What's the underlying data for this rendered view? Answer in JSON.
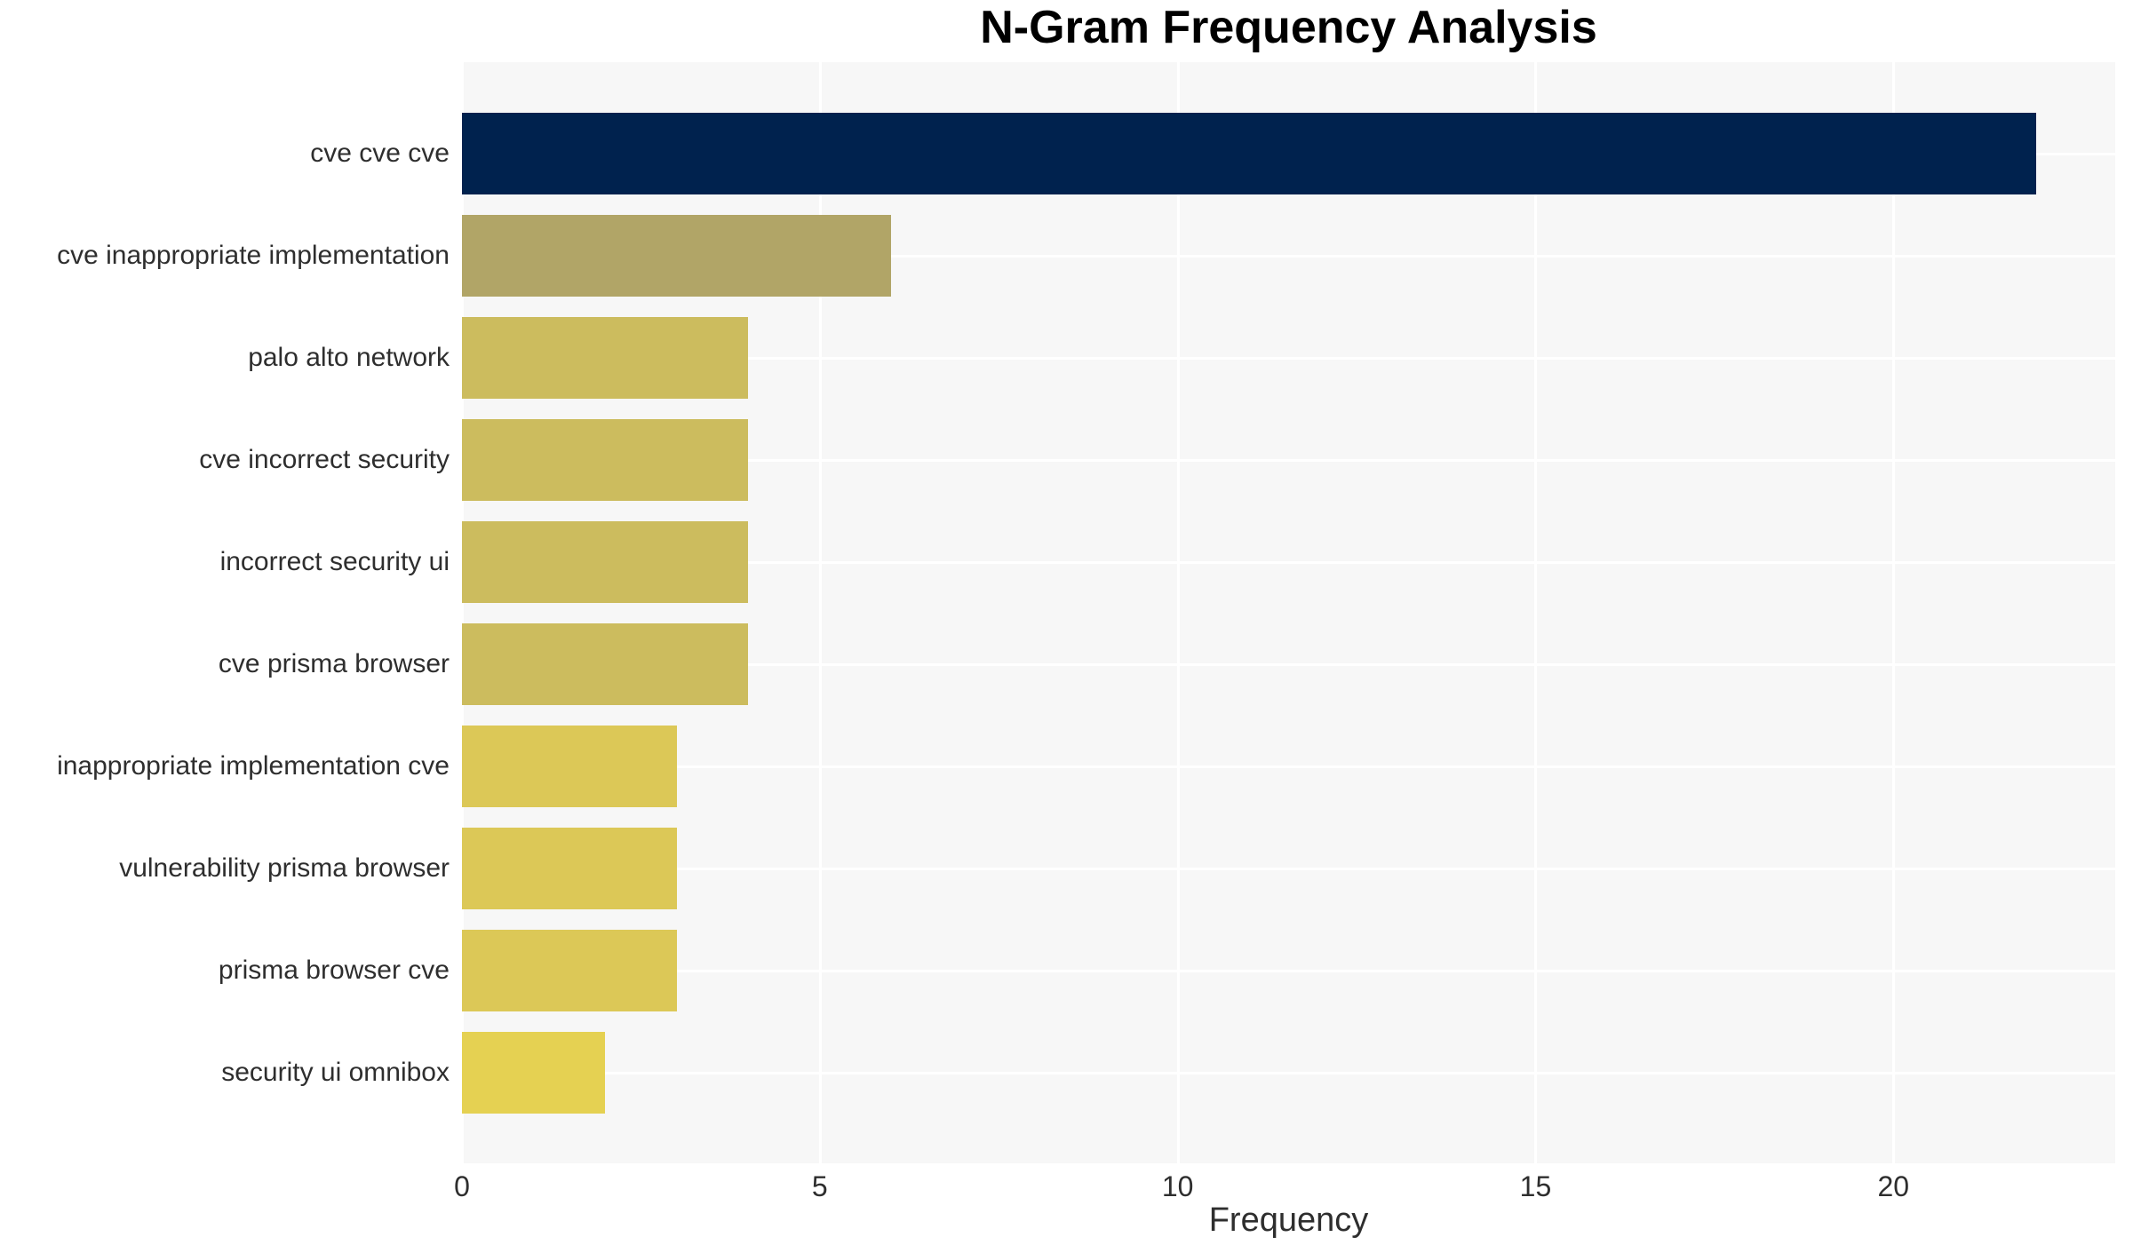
{
  "title": "N-Gram Frequency Analysis",
  "chart_data": {
    "type": "bar",
    "orientation": "horizontal",
    "title": "N-Gram Frequency Analysis",
    "xlabel": "Frequency",
    "ylabel": "",
    "categories": [
      "cve cve cve",
      "cve inappropriate implementation",
      "palo alto network",
      "cve incorrect security",
      "incorrect security ui",
      "cve prisma browser",
      "inappropriate implementation cve",
      "vulnerability prisma browser",
      "prisma browser cve",
      "security ui omnibox"
    ],
    "values": [
      22,
      6,
      4,
      4,
      4,
      4,
      3,
      3,
      3,
      2
    ],
    "bar_colors": [
      "#00224e",
      "#b1a567",
      "#ccbc5e",
      "#ccbc5e",
      "#ccbc5e",
      "#ccbc5e",
      "#dcc857",
      "#dcc857",
      "#dcc857",
      "#e5d152"
    ],
    "xticks": [
      0,
      5,
      10,
      15,
      20
    ],
    "xlim": [
      0,
      23.1
    ],
    "grid": true,
    "legend": null,
    "plot_background": "#f7f7f7",
    "grid_color": "#ffffff",
    "text_color": "#2e2e2e",
    "title_color": "#000000"
  }
}
